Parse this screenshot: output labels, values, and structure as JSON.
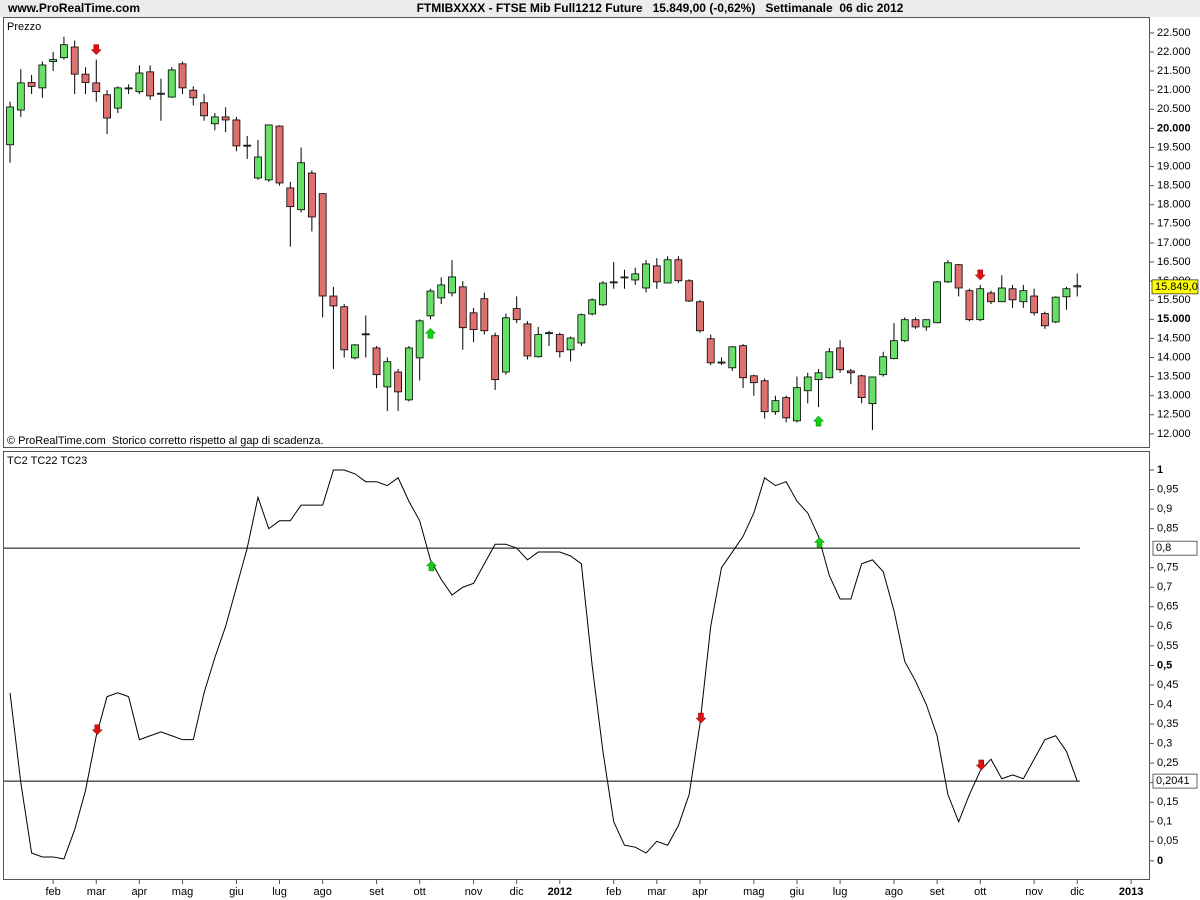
{
  "header": {
    "site": "www.ProRealTime.com",
    "title": "FTMIBXXXX - FTSE Mib Full1212 Future   15.849,00 (-0,62%)   Settimanale  06 dic 2012"
  },
  "x_axis": {
    "xlim": [
      -0.56,
      105.75
    ],
    "xticks": [
      {
        "value": 4,
        "label": "feb"
      },
      {
        "value": 8,
        "label": "mar"
      },
      {
        "value": 12,
        "label": "apr"
      },
      {
        "value": 16,
        "label": "mag"
      },
      {
        "value": 21,
        "label": "giu"
      },
      {
        "value": 25,
        "label": "lug"
      },
      {
        "value": 29,
        "label": "ago"
      },
      {
        "value": 34,
        "label": "set"
      },
      {
        "value": 38,
        "label": "ott"
      },
      {
        "value": 43,
        "label": "nov"
      },
      {
        "value": 47,
        "label": "dic"
      },
      {
        "value": 51,
        "label": "2012",
        "bold": true
      },
      {
        "value": 56,
        "label": "feb"
      },
      {
        "value": 60,
        "label": "mar"
      },
      {
        "value": 64,
        "label": "apr"
      },
      {
        "value": 69,
        "label": "mag"
      },
      {
        "value": 73,
        "label": "giu"
      },
      {
        "value": 77,
        "label": "lug"
      },
      {
        "value": 82,
        "label": "ago"
      },
      {
        "value": 86,
        "label": "set"
      },
      {
        "value": 90,
        "label": "ott"
      },
      {
        "value": 95,
        "label": "nov"
      },
      {
        "value": 99,
        "label": "dic"
      },
      {
        "value": 104,
        "label": "2013",
        "bold": true
      }
    ]
  },
  "chart_data": [
    {
      "type": "candlestick",
      "title": "Prezzo",
      "annotation": "© ProRealTime.com  Storico corretto rispetto al gap di scadenza.",
      "up_color": "#66e066",
      "down_color": "#e07070",
      "open": [
        19570,
        20480,
        21200,
        21060,
        21750,
        21850,
        22130,
        21420,
        21190,
        20880,
        20530,
        21040,
        20960,
        21480,
        20920,
        20820,
        21690,
        21000,
        20670,
        20120,
        20300,
        20220,
        19560,
        18700,
        18650,
        20060,
        18440,
        17870,
        18830,
        18290,
        15610,
        15330,
        13990,
        14620,
        14250,
        13230,
        13620,
        12890,
        13990,
        15090,
        15560,
        15690,
        15850,
        15170,
        15540,
        14570,
        13620,
        15280,
        14880,
        14020,
        14640,
        14600,
        14200,
        14380,
        15140,
        15380,
        15970,
        16100,
        16030,
        15820,
        16400,
        15950,
        16560,
        16010,
        15460,
        14490,
        13880,
        13730,
        14310,
        13520,
        13390,
        12580,
        12950,
        12340,
        13130,
        13420,
        13470,
        14250,
        13650,
        13520,
        12790,
        13550,
        13970,
        14440,
        14990,
        14800,
        14910,
        15980,
        16430,
        15750,
        14990,
        15690,
        15460,
        15800,
        15460,
        15610,
        15150,
        14930,
        15590,
        15880
      ],
      "high": [
        20700,
        21550,
        21400,
        21750,
        22000,
        22400,
        22300,
        21600,
        21800,
        21000,
        21100,
        21150,
        21650,
        21650,
        21300,
        21600,
        21750,
        21100,
        20900,
        20400,
        20550,
        20300,
        19800,
        19700,
        20100,
        20080,
        18600,
        19500,
        18900,
        18300,
        15850,
        15400,
        14350,
        15100,
        14300,
        14000,
        13700,
        14300,
        15000,
        15800,
        16100,
        16550,
        16000,
        15300,
        15700,
        14650,
        15150,
        15600,
        14950,
        14800,
        14700,
        14650,
        14550,
        15150,
        15550,
        16000,
        16500,
        16300,
        16350,
        16550,
        16600,
        16650,
        16650,
        16050,
        15500,
        14600,
        14000,
        14300,
        14350,
        13550,
        13450,
        13000,
        13000,
        13500,
        13600,
        13700,
        14250,
        14450,
        13700,
        13550,
        13500,
        14150,
        14900,
        15050,
        15050,
        15000,
        16000,
        16550,
        16450,
        15800,
        15900,
        15750,
        16150,
        15900,
        15900,
        15800,
        15200,
        15600,
        15850,
        16200
      ],
      "low": [
        19100,
        20300,
        20900,
        20800,
        21500,
        21800,
        20900,
        20900,
        20700,
        19850,
        20400,
        20900,
        20900,
        20750,
        20200,
        20800,
        20900,
        20600,
        20200,
        19950,
        19900,
        19400,
        19200,
        18650,
        18600,
        18500,
        16900,
        17800,
        17300,
        15050,
        13700,
        14000,
        13950,
        14000,
        13200,
        12600,
        12600,
        12850,
        13400,
        15000,
        15400,
        15600,
        14200,
        14400,
        14600,
        13150,
        13550,
        14900,
        13950,
        14000,
        14300,
        14000,
        13900,
        14300,
        15100,
        15350,
        15800,
        15800,
        15900,
        15700,
        15800,
        15950,
        15950,
        15450,
        14650,
        13800,
        13800,
        13650,
        13200,
        13000,
        12400,
        12500,
        12300,
        12300,
        12800,
        12700,
        13450,
        13600,
        13300,
        12800,
        12100,
        13500,
        13950,
        14400,
        14750,
        14700,
        14900,
        15950,
        15600,
        14950,
        14950,
        15400,
        15450,
        15300,
        15300,
        15100,
        14750,
        14900,
        15250,
        15600
      ],
      "close": [
        20560,
        21190,
        21100,
        21660,
        21800,
        22190,
        21420,
        21200,
        20960,
        20270,
        21060,
        21060,
        21450,
        20850,
        20900,
        21530,
        21060,
        20800,
        20330,
        20300,
        20220,
        19540,
        19540,
        19250,
        20090,
        18570,
        17950,
        19100,
        17680,
        15610,
        15350,
        14200,
        14330,
        14600,
        13550,
        13890,
        13100,
        14250,
        14960,
        15740,
        15900,
        16110,
        14780,
        14730,
        14700,
        13420,
        15040,
        14990,
        14040,
        14600,
        14650,
        14150,
        14510,
        15120,
        15510,
        15950,
        15980,
        16110,
        16190,
        16450,
        15980,
        16560,
        16010,
        15480,
        14700,
        13860,
        13860,
        14280,
        13470,
        13340,
        12580,
        12870,
        12420,
        13210,
        13490,
        13600,
        14150,
        13680,
        13600,
        12950,
        13490,
        14020,
        14440,
        14990,
        14800,
        14990,
        15980,
        16480,
        15820,
        14990,
        15800,
        15460,
        15820,
        15510,
        15750,
        15170,
        14830,
        15580,
        15800,
        15849
      ],
      "ylim": [
        11630,
        22890
      ],
      "yticks": [
        {
          "value": 12000,
          "label": "12.000"
        },
        {
          "value": 12500,
          "label": "12.500"
        },
        {
          "value": 13000,
          "label": "13.000"
        },
        {
          "value": 13500,
          "label": "13.500"
        },
        {
          "value": 14000,
          "label": "14.000"
        },
        {
          "value": 14500,
          "label": "14.500"
        },
        {
          "value": 15000,
          "label": "15.000",
          "bold": true
        },
        {
          "value": 15500,
          "label": "15.500"
        },
        {
          "value": 16000,
          "label": "16.000"
        },
        {
          "value": 16500,
          "label": "16.500"
        },
        {
          "value": 17000,
          "label": "17.000"
        },
        {
          "value": 17500,
          "label": "17.500"
        },
        {
          "value": 18000,
          "label": "18.000"
        },
        {
          "value": 18500,
          "label": "18.500"
        },
        {
          "value": 19000,
          "label": "19.000"
        },
        {
          "value": 19500,
          "label": "19.500"
        },
        {
          "value": 20000,
          "label": "20.000",
          "bold": true
        },
        {
          "value": 20500,
          "label": "20.500"
        },
        {
          "value": 21000,
          "label": "21.000"
        },
        {
          "value": 21500,
          "label": "21.500"
        },
        {
          "value": 22000,
          "label": "22.000"
        },
        {
          "value": 22500,
          "label": "22.500"
        }
      ],
      "last": {
        "value": 15849,
        "label": "15.849,0"
      },
      "signals": [
        {
          "x": 8,
          "dir": "down"
        },
        {
          "x": 39,
          "dir": "up"
        },
        {
          "x": 75,
          "dir": "up"
        },
        {
          "x": 90,
          "dir": "down"
        }
      ]
    },
    {
      "type": "line",
      "title": "TC2 TC22 TC23",
      "color": "#000000",
      "values": [
        0.43,
        0.2,
        0.02,
        0.01,
        0.01,
        0.005,
        0.08,
        0.18,
        0.32,
        0.42,
        0.43,
        0.42,
        0.31,
        0.32,
        0.33,
        0.32,
        0.31,
        0.31,
        0.43,
        0.52,
        0.6,
        0.7,
        0.8,
        0.93,
        0.85,
        0.87,
        0.87,
        0.91,
        0.91,
        0.91,
        1.0,
        1.0,
        0.99,
        0.97,
        0.97,
        0.96,
        0.98,
        0.92,
        0.87,
        0.77,
        0.72,
        0.68,
        0.7,
        0.71,
        0.76,
        0.81,
        0.81,
        0.8,
        0.77,
        0.79,
        0.79,
        0.79,
        0.78,
        0.76,
        0.5,
        0.28,
        0.1,
        0.04,
        0.035,
        0.02,
        0.05,
        0.04,
        0.09,
        0.17,
        0.35,
        0.6,
        0.75,
        0.79,
        0.83,
        0.89,
        0.98,
        0.96,
        0.97,
        0.92,
        0.89,
        0.83,
        0.73,
        0.67,
        0.67,
        0.76,
        0.77,
        0.74,
        0.64,
        0.51,
        0.46,
        0.4,
        0.32,
        0.17,
        0.1,
        0.17,
        0.23,
        0.26,
        0.21,
        0.22,
        0.21,
        0.26,
        0.31,
        0.32,
        0.28,
        0.2041
      ],
      "ylim": [
        -0.049,
        1.046
      ],
      "yticks": [
        {
          "value": 0,
          "label": "0",
          "bold": true
        },
        {
          "value": 0.05,
          "label": "0,05"
        },
        {
          "value": 0.1,
          "label": "0,1"
        },
        {
          "value": 0.15,
          "label": "0,15"
        },
        {
          "value": 0.2,
          "label": "0,2"
        },
        {
          "value": 0.25,
          "label": "0,25"
        },
        {
          "value": 0.3,
          "label": "0,3"
        },
        {
          "value": 0.35,
          "label": "0,35"
        },
        {
          "value": 0.4,
          "label": "0,4"
        },
        {
          "value": 0.45,
          "label": "0,45"
        },
        {
          "value": 0.5,
          "label": "0,5",
          "bold": true
        },
        {
          "value": 0.55,
          "label": "0,55"
        },
        {
          "value": 0.6,
          "label": "0,6"
        },
        {
          "value": 0.65,
          "label": "0,65"
        },
        {
          "value": 0.7,
          "label": "0,7"
        },
        {
          "value": 0.75,
          "label": "0,75"
        },
        {
          "value": 0.85,
          "label": "0,85"
        },
        {
          "value": 0.9,
          "label": "0,9"
        },
        {
          "value": 0.95,
          "label": "0,95"
        },
        {
          "value": 1,
          "label": "1",
          "bold": true
        }
      ],
      "levels": [
        {
          "value": 0.8,
          "label": "0,8"
        },
        {
          "value": 0.2041,
          "label": "0,2041"
        }
      ],
      "signals": [
        {
          "x": 8,
          "dir": "down"
        },
        {
          "x": 39,
          "dir": "up"
        },
        {
          "x": 64,
          "dir": "down"
        },
        {
          "x": 75,
          "dir": "up"
        },
        {
          "x": 90,
          "dir": "down"
        }
      ]
    }
  ]
}
